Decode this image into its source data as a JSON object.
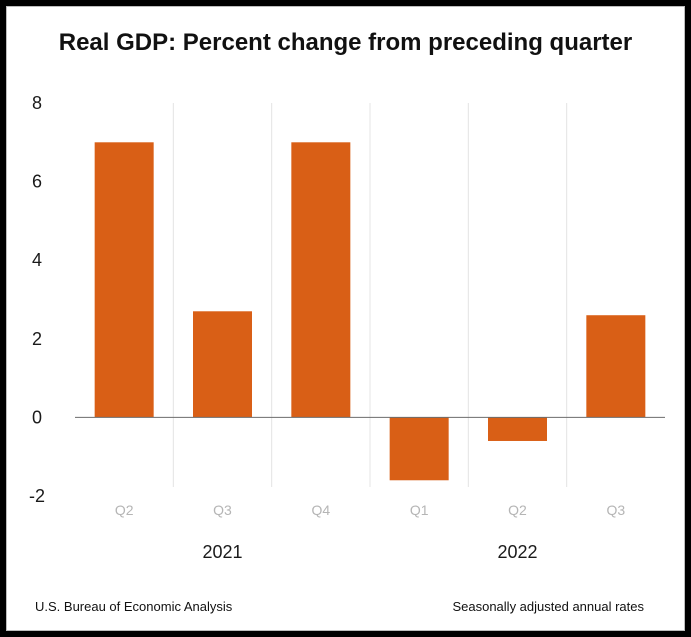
{
  "chart_data": {
    "type": "bar",
    "title": "Real GDP:  Percent change from preceding quarter",
    "categories": [
      "Q2",
      "Q3",
      "Q4",
      "Q1",
      "Q2",
      "Q3"
    ],
    "groups": [
      {
        "label": "2021",
        "categories": [
          "Q2",
          "Q3",
          "Q4"
        ]
      },
      {
        "label": "2022",
        "categories": [
          "Q1",
          "Q2",
          "Q3"
        ]
      }
    ],
    "values": [
      7.0,
      2.7,
      7.0,
      -1.6,
      -0.6,
      2.6
    ],
    "ylim": [
      -2,
      8
    ],
    "yticks": [
      "8",
      "6",
      "4",
      "2",
      "0",
      "-2"
    ],
    "xlabel": "",
    "ylabel": "",
    "bar_color": "#d95f16",
    "grid": "vertical separators between categories"
  },
  "footer": {
    "source": "U.S. Bureau of Economic Analysis",
    "note": "Seasonally adjusted annual rates"
  }
}
